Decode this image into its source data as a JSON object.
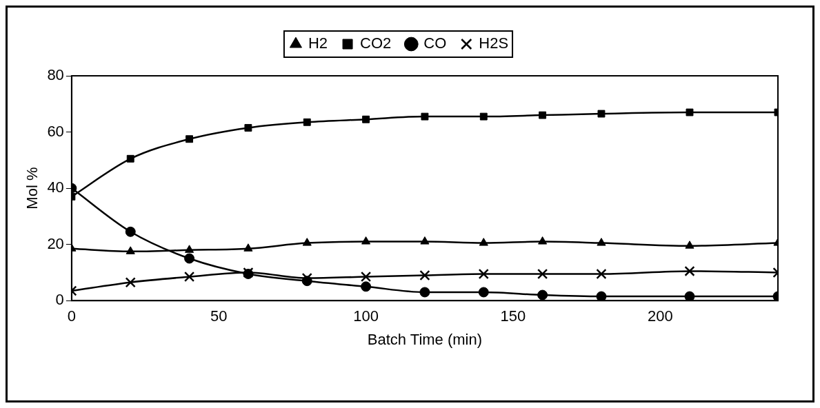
{
  "chart_data": {
    "type": "line",
    "xlabel": "Batch Time (min)",
    "ylabel": "Mol %",
    "x": [
      0,
      20,
      40,
      60,
      80,
      100,
      120,
      140,
      160,
      180,
      210,
      240
    ],
    "xlim": [
      0,
      240
    ],
    "xticks": [
      0,
      50,
      100,
      150,
      200
    ],
    "ylim": [
      0,
      80
    ],
    "yticks": [
      0,
      20,
      40,
      60,
      80
    ],
    "grid": false,
    "legend": "top",
    "series": [
      {
        "name": "H2",
        "color": "#000000",
        "marker": "triangle",
        "values": [
          18.5,
          17.5,
          18,
          18.5,
          20.5,
          21,
          21,
          20.5,
          21,
          20.5,
          19.5,
          20.5
        ]
      },
      {
        "name": "CO2",
        "color": "#000000",
        "marker": "square",
        "values": [
          37,
          50.5,
          57.5,
          61.5,
          63.5,
          64.5,
          65.5,
          65.5,
          66,
          66.5,
          67,
          67
        ]
      },
      {
        "name": "CO",
        "color": "#000000",
        "marker": "circle",
        "values": [
          40,
          24.5,
          15,
          9.5,
          7,
          5,
          3,
          3,
          2,
          1.5,
          1.5,
          1.5
        ]
      },
      {
        "name": "H2S",
        "color": "#000000",
        "marker": "cross",
        "values": [
          3.5,
          6.5,
          8.5,
          10,
          8,
          8.5,
          9,
          9.5,
          9.5,
          9.5,
          10.5,
          10
        ]
      }
    ]
  }
}
